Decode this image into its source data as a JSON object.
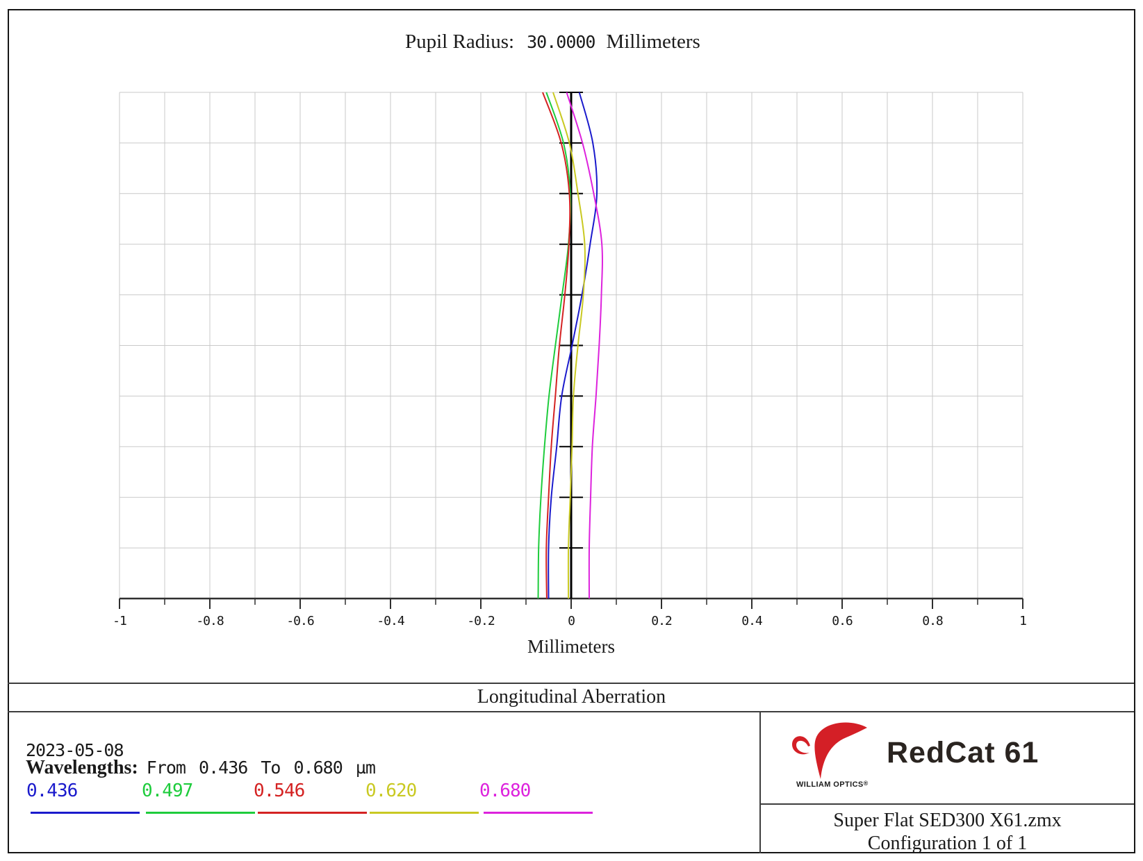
{
  "header": {
    "title": {
      "label": "Pupil Radius:",
      "value": "30.0000",
      "unit": "Millimeters"
    }
  },
  "chart_data": {
    "type": "line",
    "title": "Longitudinal Aberration",
    "xlabel": "Millimeters",
    "x_range": [
      -1,
      1
    ],
    "x_tick_labels": [
      "-1",
      "-0.8",
      "-0.6",
      "-0.4",
      "-0.2",
      "0",
      "0.2",
      "0.4",
      "0.6",
      "0.8",
      "1"
    ],
    "x_major_tick_step": 0.2,
    "x_minor_tick_step": 0.1,
    "y_range": [
      0,
      1
    ],
    "y_axis_description": "normalized entrance pupil height (0 at bottom, full pupil radius 30 mm at top); vertical zero-focus axis drawn at x = 0 with tick bars at each tenth",
    "grid": "on",
    "grid_columns": 20,
    "grid_rows": 10,
    "legend_position": "bottom-left footer",
    "pupil_heights": [
      0,
      0.1,
      0.2,
      0.3,
      0.4,
      0.5,
      0.6,
      0.7,
      0.8,
      0.9,
      1.0
    ],
    "series": [
      {
        "name": "0.436",
        "color": "#1a1acc",
        "focus_shift_mm": [
          -0.05,
          -0.05,
          -0.044,
          -0.032,
          -0.021,
          0.002,
          0.024,
          0.042,
          0.057,
          0.048,
          0.018
        ]
      },
      {
        "name": "0.497",
        "color": "#1ecc3c",
        "focus_shift_mm": [
          -0.073,
          -0.072,
          -0.067,
          -0.059,
          -0.049,
          -0.035,
          -0.02,
          -0.006,
          -0.002,
          -0.017,
          -0.055
        ]
      },
      {
        "name": "0.546",
        "color": "#d42222",
        "focus_shift_mm": [
          -0.054,
          -0.055,
          -0.05,
          -0.044,
          -0.035,
          -0.026,
          -0.014,
          -0.005,
          -0.004,
          -0.022,
          -0.063
        ]
      },
      {
        "name": "0.620",
        "color": "#c9c922",
        "focus_shift_mm": [
          -0.006,
          -0.006,
          -0.002,
          0.002,
          0.005,
          0.015,
          0.027,
          0.03,
          0.015,
          -0.004,
          -0.04
        ]
      },
      {
        "name": "0.680",
        "color": "#dd22dd",
        "focus_shift_mm": [
          0.04,
          0.04,
          0.043,
          0.047,
          0.055,
          0.062,
          0.067,
          0.068,
          0.05,
          0.025,
          -0.01
        ]
      }
    ]
  },
  "footer": {
    "date": "2023-05-08",
    "wavelengths_label": "Wavelengths:",
    "wavelengths_range": "From 0.436 To 0.680 µm",
    "legend": [
      {
        "label": "0.436",
        "color": "#1a1acc"
      },
      {
        "label": "0.497",
        "color": "#1ecc3c"
      },
      {
        "label": "0.546",
        "color": "#d42222"
      },
      {
        "label": "0.620",
        "color": "#c9c922"
      },
      {
        "label": "0.680",
        "color": "#dd22dd"
      }
    ]
  },
  "title_block": {
    "brand": "WILLIAM OPTICS",
    "registered": "®",
    "brand_color": "#d41f26",
    "product": "RedCat 61",
    "file": "Super Flat SED300 X61.zmx",
    "configuration": "Configuration 1 of 1"
  }
}
